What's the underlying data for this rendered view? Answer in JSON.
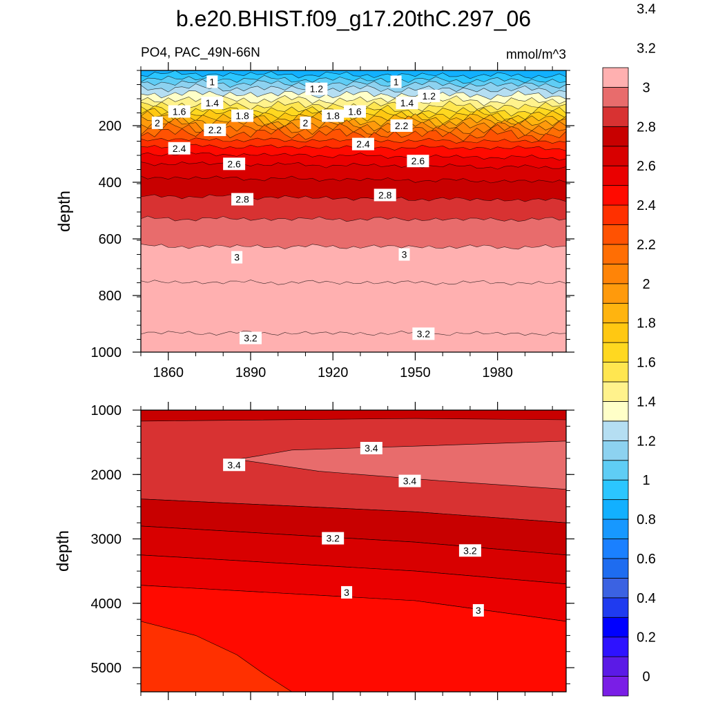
{
  "title": "b.e20.BHIST.f09_g17.20thC.297_06",
  "variable_label": "PO4, PAC_49N-66N",
  "units_label": "mmol/m^3",
  "colors": {
    "palette": [
      "#7a1ee6",
      "#5b1ae6",
      "#2e12ff",
      "#0000ff",
      "#1f3bf0",
      "#3b62e2",
      "#1e6cf0",
      "#1a80ff",
      "#1798ff",
      "#12b0ff",
      "#2bc6ff",
      "#5fcdf5",
      "#8dd2f0",
      "#b5def2",
      "#ffffc8",
      "#fff28c",
      "#ffe650",
      "#ffd820",
      "#ffc812",
      "#ffb40f",
      "#ff9a0c",
      "#ff8407",
      "#ff6e04",
      "#ff5202",
      "#ff3000",
      "#ff0a00",
      "#ea0000",
      "#d80000",
      "#c80000",
      "#d83232",
      "#e86c6c",
      "#ffb0b0"
    ]
  },
  "colorbar": {
    "labels": [
      "3.4",
      "3.2",
      "3",
      "2.8",
      "2.6",
      "2.4",
      "2.2",
      "2",
      "1.8",
      "1.6",
      "1.4",
      "1.2",
      "1",
      "0.8",
      "0.6",
      "0.4",
      "0.2",
      "0"
    ]
  },
  "chart_data": [
    {
      "type": "heatmap",
      "panel": "upper",
      "ylabel": "depth",
      "xlabel": "",
      "x_ticks": [
        "1860",
        "1890",
        "1920",
        "1950",
        "1980"
      ],
      "x_tick_values": [
        1860,
        1890,
        1920,
        1950,
        1980
      ],
      "xlim": [
        1850,
        2005
      ],
      "y_ticks": [
        "200",
        "400",
        "600",
        "800",
        "1000"
      ],
      "y_tick_values": [
        200,
        400,
        600,
        800,
        1000
      ],
      "ylim": [
        5,
        1000
      ],
      "y_inverted": true,
      "contour_interval": 0.1,
      "contour_labels": [
        {
          "text": "1",
          "year": 1876,
          "depth": 45
        },
        {
          "text": "1.2",
          "year": 1914,
          "depth": 70
        },
        {
          "text": "1",
          "year": 1943,
          "depth": 45
        },
        {
          "text": "1.2",
          "year": 1955,
          "depth": 95
        },
        {
          "text": "1.4",
          "year": 1876,
          "depth": 120
        },
        {
          "text": "1.4",
          "year": 1947,
          "depth": 120
        },
        {
          "text": "1.6",
          "year": 1864,
          "depth": 150
        },
        {
          "text": "1.6",
          "year": 1928,
          "depth": 150
        },
        {
          "text": "1.8",
          "year": 1887,
          "depth": 165
        },
        {
          "text": "1.8",
          "year": 1920,
          "depth": 165
        },
        {
          "text": "2",
          "year": 1856,
          "depth": 190
        },
        {
          "text": "2",
          "year": 1910,
          "depth": 190
        },
        {
          "text": "2.2",
          "year": 1877,
          "depth": 215
        },
        {
          "text": "2.2",
          "year": 1945,
          "depth": 200
        },
        {
          "text": "2.4",
          "year": 1864,
          "depth": 280
        },
        {
          "text": "2.4",
          "year": 1931,
          "depth": 265
        },
        {
          "text": "2.6",
          "year": 1884,
          "depth": 335
        },
        {
          "text": "2.6",
          "year": 1951,
          "depth": 325
        },
        {
          "text": "2.8",
          "year": 1887,
          "depth": 460
        },
        {
          "text": "2.8",
          "year": 1939,
          "depth": 445
        },
        {
          "text": "3",
          "year": 1885,
          "depth": 665
        },
        {
          "text": "3",
          "year": 1946,
          "depth": 655
        },
        {
          "text": "3.2",
          "year": 1890,
          "depth": 950
        },
        {
          "text": "3.2",
          "year": 1953,
          "depth": 935
        }
      ]
    },
    {
      "type": "heatmap",
      "panel": "lower",
      "ylabel": "depth",
      "xlabel": "",
      "x_tick_values": [
        1860,
        1890,
        1920,
        1950,
        1980
      ],
      "xlim": [
        1850,
        2005
      ],
      "y_ticks": [
        "1000",
        "2000",
        "3000",
        "4000",
        "5000"
      ],
      "y_tick_values": [
        1000,
        2000,
        3000,
        4000,
        5000
      ],
      "ylim": [
        1000,
        5375
      ],
      "y_inverted": true,
      "contour_labels": [
        {
          "text": "3.4",
          "year": 1934,
          "depth": 1590
        },
        {
          "text": "3.4",
          "year": 1884,
          "depth": 1850
        },
        {
          "text": "3.4",
          "year": 1948,
          "depth": 2100
        },
        {
          "text": "3.2",
          "year": 1920,
          "depth": 2990
        },
        {
          "text": "3.2",
          "year": 1970,
          "depth": 3180
        },
        {
          "text": "3",
          "year": 1925,
          "depth": 3830
        },
        {
          "text": "3",
          "year": 1973,
          "depth": 4110
        }
      ]
    }
  ]
}
